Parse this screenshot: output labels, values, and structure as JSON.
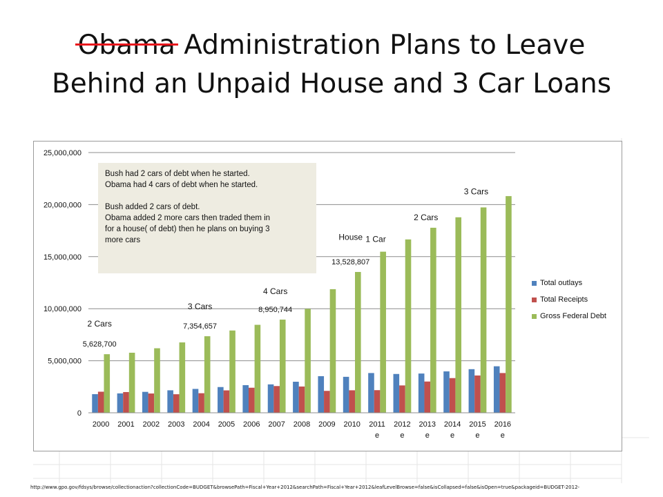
{
  "slide": {
    "title_struck": "Obama",
    "title_rest_line1": " Administration Plans to Leave",
    "title_line2": "Behind an Unpaid House and 3 Car Loans",
    "source_url": "http://www.gpo.gov/fdsys/browse/collectionaction?collectionCode=BUDGET&browsePath=Fiscal+Year+2012&searchPath=Fiscal+Year+2012&leafLevelBrowse=false&isCollapsed=false&isOpen=true&packageid=BUDGET-2012-",
    "note": {
      "line1": "Bush  had 2 cars of debt when he started.",
      "line2": "Obama  had 4 cars of debt when he started.",
      "line3": "Bush added 2 cars of debt.",
      "line4": "Obama  added 2 more cars then traded them in",
      "line5": "for a house( of debt) then he plans on buying 3",
      "line6": "more cars"
    },
    "colors": {
      "strike": "#e8141b",
      "outlays": "#4f81bd",
      "receipts": "#c0504d",
      "debt": "#9bbb59",
      "note_bg": "#eeece1"
    }
  },
  "chart_data": {
    "type": "bar",
    "categories": [
      "2000",
      "2001",
      "2002",
      "2003",
      "2004",
      "2005",
      "2006",
      "2007",
      "2008",
      "2009",
      "2010",
      "2011 e",
      "2012 e",
      "2013 e",
      "2014 e",
      "2015 e",
      "2016 e"
    ],
    "series": [
      {
        "name": "Total outlays",
        "color": "#4f81bd",
        "values": [
          1789000,
          1863000,
          2011000,
          2160000,
          2293000,
          2472000,
          2655000,
          2729000,
          2983000,
          3518000,
          3456000,
          3819000,
          3729000,
          3771000,
          3977000,
          4190000,
          4468000
        ]
      },
      {
        "name": "Total Receipts",
        "color": "#c0504d",
        "values": [
          2025000,
          1991000,
          1853000,
          1782000,
          1880000,
          2154000,
          2407000,
          2568000,
          2524000,
          2105000,
          2163000,
          2174000,
          2628000,
          3003000,
          3333000,
          3583000,
          3819000
        ]
      },
      {
        "name": "Gross Federal Debt",
        "color": "#9bbb59",
        "values": [
          5628700,
          5769900,
          6198400,
          6760000,
          7354657,
          7905300,
          8451400,
          8950744,
          9986100,
          11875900,
          13528807,
          15476200,
          16654000,
          17776000,
          18782000,
          19730000,
          20815000
        ]
      }
    ],
    "data_labels": [
      {
        "category_index": 0,
        "text": "5,628,700"
      },
      {
        "category_index": 4,
        "text": "7,354,657"
      },
      {
        "category_index": 7,
        "text": "8,950,744"
      },
      {
        "category_index": 10,
        "text": "13,528,807"
      }
    ],
    "annotations": [
      {
        "category_index": 0,
        "value": 8300000,
        "text": "2 Cars"
      },
      {
        "category_index": 4,
        "value": 9950000,
        "text": "3 Cars"
      },
      {
        "category_index": 7,
        "value": 11400000,
        "text": "4 Cars"
      },
      {
        "category_index": 10,
        "value": 16600000,
        "text": "House"
      },
      {
        "category_index": 11,
        "value": 16400000,
        "text": "1 Car"
      },
      {
        "category_index": 13,
        "value": 18500000,
        "text": "2 Cars"
      },
      {
        "category_index": 15,
        "value": 21000000,
        "text": "3 Cars"
      }
    ],
    "ylim": [
      0,
      25000000
    ],
    "yticks": [
      0,
      5000000,
      10000000,
      15000000,
      20000000,
      25000000
    ],
    "ytick_labels": [
      "0",
      "5,000,000",
      "10,000,000",
      "15,000,000",
      "20,000,000",
      "25,000,000"
    ],
    "grid": true,
    "legend_position": "right",
    "title": "",
    "xlabel": "",
    "ylabel": ""
  }
}
